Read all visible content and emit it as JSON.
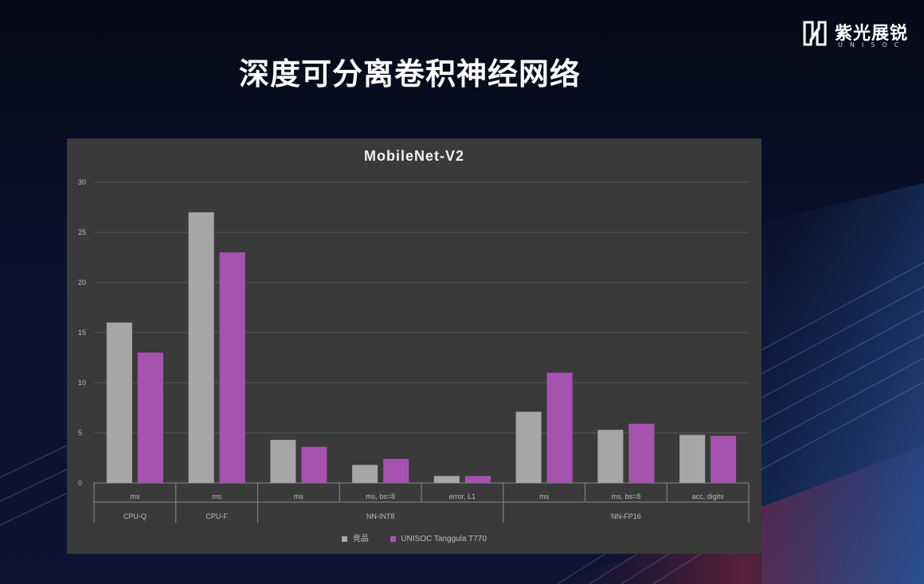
{
  "slide": {
    "title": "深度可分离卷积神经网络"
  },
  "logo": {
    "cn": "紫光展锐",
    "en": "UNISOC"
  },
  "colors": {
    "series_competitor": "#a6a6a6",
    "series_unisoc": "#a653b0",
    "panel": "#3a3a3a"
  },
  "chart_data": {
    "type": "bar",
    "title": "MobileNet-V2",
    "xlabel": "",
    "ylabel": "",
    "ylim": [
      0,
      30
    ],
    "yticks": [
      0,
      5,
      10,
      15,
      20,
      25,
      30
    ],
    "grid": true,
    "legend_position": "bottom",
    "groups": [
      {
        "label": "CPU-Q",
        "categories": [
          "ms"
        ]
      },
      {
        "label": "CPU-F",
        "categories": [
          "ms"
        ]
      },
      {
        "label": "NN-INT8",
        "categories": [
          "ms",
          "ms, bs=8",
          "error, L1"
        ]
      },
      {
        "label": "NN-FP16",
        "categories": [
          "ms",
          "ms, bs=8",
          "acc, digits"
        ]
      }
    ],
    "categories": [
      "ms",
      "ms",
      "ms",
      "ms, bs=8",
      "error, L1",
      "ms",
      "ms, bs=8",
      "acc, digits"
    ],
    "series": [
      {
        "name": "竞品",
        "values": [
          16,
          27,
          4.3,
          1.8,
          0.7,
          7.1,
          5.3,
          4.8
        ]
      },
      {
        "name": "UNISOC Tanggula T770",
        "values": [
          13,
          23,
          3.6,
          2.4,
          0.7,
          11,
          5.9,
          4.7
        ]
      }
    ]
  }
}
